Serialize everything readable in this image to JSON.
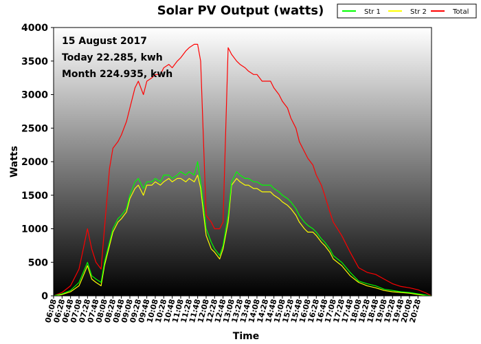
{
  "chart_data": {
    "type": "line",
    "title": "Solar PV Output (watts)",
    "xlabel": "Time",
    "ylabel": "Watts",
    "ylim": [
      0,
      4000
    ],
    "yticks": [
      "0",
      "500",
      "1000",
      "1500",
      "2000",
      "2500",
      "3000",
      "3500",
      "4000"
    ],
    "xlim": [
      "06:08",
      "21:00"
    ],
    "xticks": [
      "06:08",
      "06:28",
      "06:48",
      "07:08",
      "07:28",
      "07:48",
      "08:08",
      "08:28",
      "08:48",
      "09:08",
      "09:28",
      "09:48",
      "10:08",
      "10:28",
      "10:48",
      "11:08",
      "11:28",
      "11:48",
      "12:08",
      "12:28",
      "12:48",
      "13:08",
      "13:28",
      "13:48",
      "14:08",
      "14:28",
      "14:48",
      "15:08",
      "15:28",
      "15:48",
      "16:08",
      "16:28",
      "16:48",
      "17:08",
      "17:28",
      "17:48",
      "18:08",
      "18:28",
      "18:48",
      "19:08",
      "19:28",
      "19:48",
      "20:08",
      "20:28"
    ],
    "annotations": [
      "15 August 2017",
      "Today 22.285, kwh",
      "Month 224.935, kwh"
    ],
    "legend_position": "top-right",
    "grid": false,
    "background": "vertical gradient, white at top to black at bottom",
    "series": [
      {
        "name": "Str 1",
        "color": "#00ff00",
        "x": [
          "06:08",
          "06:28",
          "06:48",
          "07:08",
          "07:18",
          "07:28",
          "07:38",
          "07:48",
          "08:00",
          "08:08",
          "08:20",
          "08:28",
          "08:40",
          "08:48",
          "09:00",
          "09:08",
          "09:20",
          "09:28",
          "09:40",
          "09:48",
          "10:00",
          "10:08",
          "10:20",
          "10:28",
          "10:40",
          "10:48",
          "11:00",
          "11:08",
          "11:20",
          "11:28",
          "11:40",
          "11:48",
          "11:55",
          "12:08",
          "12:20",
          "12:28",
          "12:40",
          "12:48",
          "13:00",
          "13:08",
          "13:20",
          "13:28",
          "13:40",
          "13:48",
          "14:00",
          "14:08",
          "14:20",
          "14:28",
          "14:40",
          "14:48",
          "15:00",
          "15:08",
          "15:20",
          "15:28",
          "15:40",
          "15:48",
          "16:00",
          "16:08",
          "16:20",
          "16:28",
          "16:40",
          "16:48",
          "17:00",
          "17:08",
          "17:28",
          "17:48",
          "18:08",
          "18:28",
          "18:48",
          "19:08",
          "19:28",
          "19:48",
          "20:08",
          "20:28",
          "20:48",
          "21:00"
        ],
        "values": [
          0,
          30,
          80,
          200,
          350,
          500,
          300,
          250,
          200,
          500,
          800,
          1000,
          1150,
          1200,
          1300,
          1500,
          1700,
          1750,
          1600,
          1700,
          1700,
          1750,
          1700,
          1800,
          1800,
          1750,
          1800,
          1850,
          1800,
          1850,
          1800,
          2000,
          1700,
          1000,
          800,
          700,
          600,
          750,
          1200,
          1700,
          1850,
          1800,
          1750,
          1750,
          1700,
          1700,
          1650,
          1650,
          1650,
          1600,
          1550,
          1500,
          1450,
          1400,
          1300,
          1200,
          1100,
          1050,
          1000,
          950,
          850,
          800,
          700,
          600,
          500,
          350,
          220,
          180,
          150,
          100,
          80,
          60,
          50,
          30,
          10,
          0
        ]
      },
      {
        "name": "Str 2",
        "color": "#ffff00",
        "x": [
          "06:08",
          "06:28",
          "06:48",
          "07:08",
          "07:18",
          "07:28",
          "07:38",
          "07:48",
          "08:00",
          "08:08",
          "08:20",
          "08:28",
          "08:40",
          "08:48",
          "09:00",
          "09:08",
          "09:20",
          "09:28",
          "09:40",
          "09:48",
          "10:00",
          "10:08",
          "10:20",
          "10:28",
          "10:40",
          "10:48",
          "11:00",
          "11:08",
          "11:20",
          "11:28",
          "11:40",
          "11:48",
          "11:55",
          "12:08",
          "12:20",
          "12:28",
          "12:40",
          "12:48",
          "13:00",
          "13:08",
          "13:20",
          "13:28",
          "13:40",
          "13:48",
          "14:00",
          "14:08",
          "14:20",
          "14:28",
          "14:40",
          "14:48",
          "15:00",
          "15:08",
          "15:20",
          "15:28",
          "15:40",
          "15:48",
          "16:00",
          "16:08",
          "16:20",
          "16:28",
          "16:40",
          "16:48",
          "17:00",
          "17:08",
          "17:28",
          "17:48",
          "18:08",
          "18:28",
          "18:48",
          "19:08",
          "19:28",
          "19:48",
          "20:08",
          "20:28",
          "20:48",
          "21:00"
        ],
        "values": [
          0,
          20,
          60,
          150,
          300,
          450,
          250,
          200,
          150,
          450,
          750,
          950,
          1100,
          1150,
          1250,
          1450,
          1600,
          1650,
          1500,
          1650,
          1650,
          1700,
          1650,
          1700,
          1750,
          1700,
          1750,
          1750,
          1700,
          1750,
          1700,
          1800,
          1600,
          900,
          700,
          650,
          550,
          700,
          1100,
          1650,
          1750,
          1700,
          1650,
          1650,
          1600,
          1600,
          1550,
          1550,
          1550,
          1500,
          1450,
          1400,
          1350,
          1300,
          1200,
          1100,
          1000,
          950,
          950,
          900,
          800,
          750,
          650,
          550,
          450,
          300,
          200,
          150,
          120,
          80,
          60,
          50,
          40,
          20,
          5,
          0
        ]
      },
      {
        "name": "Total",
        "color": "#ff0000",
        "x": [
          "06:08",
          "06:28",
          "06:48",
          "07:08",
          "07:18",
          "07:28",
          "07:38",
          "07:48",
          "08:00",
          "08:08",
          "08:20",
          "08:28",
          "08:40",
          "08:48",
          "09:00",
          "09:08",
          "09:20",
          "09:28",
          "09:40",
          "09:48",
          "10:00",
          "10:08",
          "10:20",
          "10:28",
          "10:40",
          "10:48",
          "11:00",
          "11:08",
          "11:20",
          "11:28",
          "11:40",
          "11:48",
          "11:55",
          "12:08",
          "12:20",
          "12:28",
          "12:40",
          "12:48",
          "13:00",
          "13:08",
          "13:20",
          "13:28",
          "13:40",
          "13:48",
          "14:00",
          "14:08",
          "14:20",
          "14:28",
          "14:40",
          "14:48",
          "15:00",
          "15:08",
          "15:20",
          "15:28",
          "15:40",
          "15:48",
          "16:00",
          "16:08",
          "16:20",
          "16:28",
          "16:40",
          "16:48",
          "17:00",
          "17:08",
          "17:28",
          "17:48",
          "18:08",
          "18:28",
          "18:48",
          "19:08",
          "19:28",
          "19:48",
          "20:08",
          "20:28",
          "20:48",
          "21:00"
        ],
        "values": [
          0,
          50,
          150,
          400,
          700,
          1000,
          700,
          500,
          400,
          1000,
          1900,
          2200,
          2300,
          2400,
          2600,
          2800,
          3100,
          3200,
          3000,
          3200,
          3250,
          3300,
          3300,
          3400,
          3450,
          3400,
          3500,
          3550,
          3650,
          3700,
          3750,
          3750,
          3500,
          1200,
          1100,
          1000,
          1000,
          1100,
          3700,
          3600,
          3500,
          3450,
          3400,
          3350,
          3300,
          3300,
          3200,
          3200,
          3200,
          3100,
          3000,
          2900,
          2800,
          2650,
          2500,
          2300,
          2150,
          2050,
          1950,
          1800,
          1650,
          1500,
          1250,
          1100,
          900,
          650,
          420,
          350,
          320,
          250,
          180,
          140,
          120,
          90,
          40,
          0
        ]
      }
    ]
  }
}
